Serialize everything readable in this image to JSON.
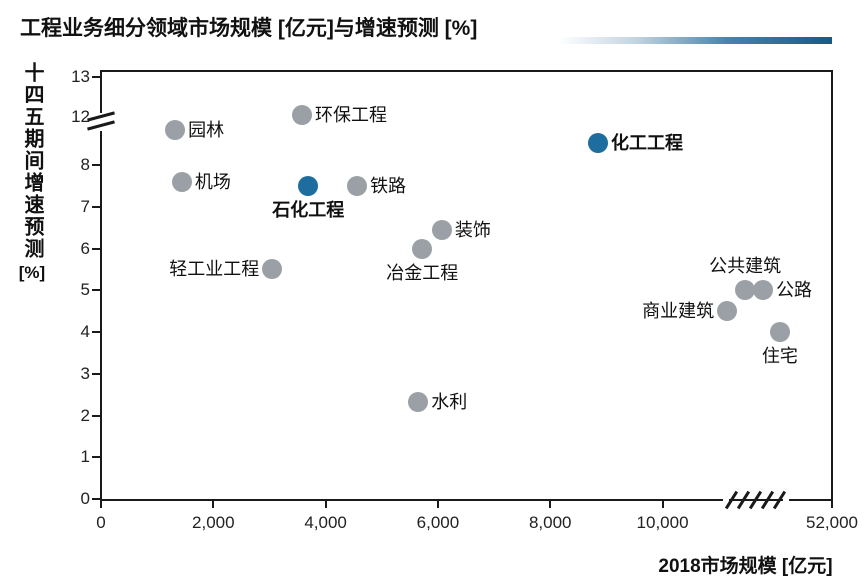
{
  "title": "工程业务细分领域市场规模 [亿元]与增速预测 [%]",
  "y_axis": {
    "label": "十四五期间增速预测",
    "unit": "[%]"
  },
  "x_axis": {
    "label": "2018市场规模 [亿元]"
  },
  "colors": {
    "dot_default": "#9aa0a5",
    "dot_highlight": "#1d6d9e",
    "axis": "#1a1a1a",
    "title_underline_end": "#175a88"
  },
  "chart_data": {
    "type": "scatter",
    "title": "工程业务细分领域市场规模 [亿元]与增速预测 [%]",
    "xlabel": "2018市场规模 [亿元]",
    "ylabel": "十四五期间增速预测 [%]",
    "grid": false,
    "legend": "none",
    "x_ticks": [
      {
        "value": 0,
        "label": "0"
      },
      {
        "value": 2000,
        "label": "2,000"
      },
      {
        "value": 4000,
        "label": "4,000"
      },
      {
        "value": 6000,
        "label": "6,000"
      },
      {
        "value": 8000,
        "label": "8,000"
      },
      {
        "value": 10000,
        "label": "10,000"
      },
      {
        "value": 52000,
        "label": "52,000"
      }
    ],
    "y_ticks": [
      0,
      1,
      2,
      3,
      4,
      5,
      6,
      7,
      8,
      12,
      13
    ],
    "ylim": [
      0,
      13
    ],
    "axis_breaks": {
      "y_between": [
        8,
        12
      ],
      "x_between": [
        11000,
        52000
      ]
    },
    "points": [
      {
        "name": "园林",
        "x": 1320,
        "y": 10.9,
        "highlight": false,
        "label_pos": "right"
      },
      {
        "name": "环保工程",
        "x": 3580,
        "y": 12.05,
        "highlight": false,
        "label_pos": "right"
      },
      {
        "name": "机场",
        "x": 1440,
        "y": 7.6,
        "highlight": false,
        "label_pos": "right"
      },
      {
        "name": "石化工程",
        "x": 3690,
        "y": 7.5,
        "highlight": true,
        "label_pos": "below"
      },
      {
        "name": "铁路",
        "x": 4560,
        "y": 7.5,
        "highlight": false,
        "label_pos": "right"
      },
      {
        "name": "化工工程",
        "x": 8850,
        "y": 9.8,
        "highlight": true,
        "label_pos": "right"
      },
      {
        "name": "装饰",
        "x": 6070,
        "y": 6.45,
        "highlight": false,
        "label_pos": "right"
      },
      {
        "name": "冶金工程",
        "x": 5720,
        "y": 6.0,
        "highlight": false,
        "label_pos": "below"
      },
      {
        "name": "轻工业工程",
        "x": 3050,
        "y": 5.5,
        "highlight": false,
        "label_pos": "left"
      },
      {
        "name": "水利",
        "x": 5650,
        "y": 2.33,
        "highlight": false,
        "label_pos": "right"
      },
      {
        "name": "商业建筑",
        "x": 11150,
        "y": 4.5,
        "highlight": false,
        "label_pos": "left"
      },
      {
        "name": "公共建筑",
        "x": 11470,
        "y": 5.0,
        "highlight": false,
        "label_pos": "above"
      },
      {
        "name": "公路",
        "x": 11790,
        "y": 5.0,
        "highlight": false,
        "label_pos": "right"
      },
      {
        "name": "住宅",
        "x": 12090,
        "y": 4.0,
        "highlight": false,
        "label_pos": "below"
      }
    ]
  }
}
